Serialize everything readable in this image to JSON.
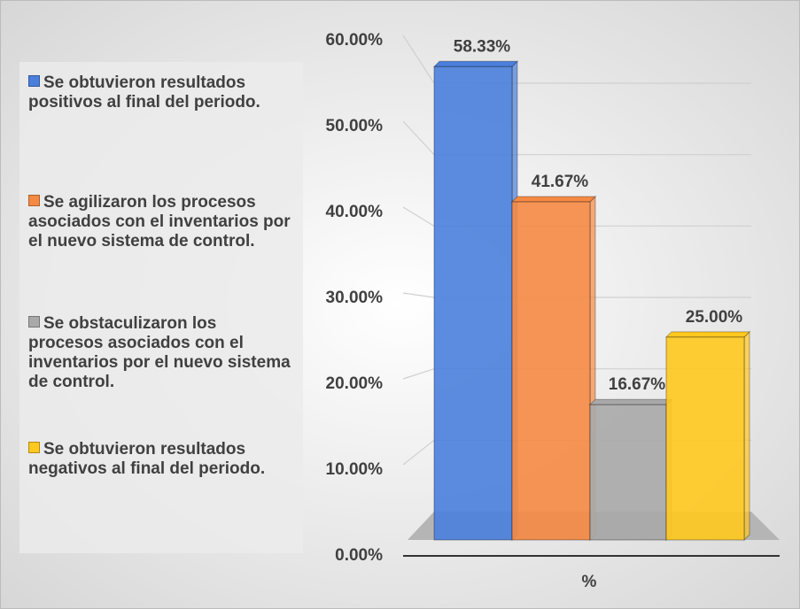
{
  "chart_data": {
    "type": "bar3d",
    "categories": [
      "%"
    ],
    "series": [
      {
        "name": "Se obtuvieron resultados positivos al final del periodo.",
        "color": "#4a7fdc",
        "values": [
          58.33
        ],
        "value_labels": [
          "58.33%"
        ]
      },
      {
        "name": "Se agilizaron los procesos asociados con el inventarios por el nuevo sistema de control.",
        "color": "#f58a44",
        "values": [
          41.67
        ],
        "value_labels": [
          "41.67%"
        ]
      },
      {
        "name": "Se obstaculizaron los procesos asociados con el inventarios por el nuevo sistema de control.",
        "color": "#a9a9a9",
        "values": [
          16.67
        ],
        "value_labels": [
          "16.67%"
        ]
      },
      {
        "name": "Se obtuvieron resultados negativos al final del periodo.",
        "color": "#ffc81e",
        "values": [
          25.0
        ],
        "value_labels": [
          "25.00%"
        ]
      }
    ],
    "ylim": [
      0,
      60
    ],
    "yticks": [
      {
        "value": 0,
        "label": "0.00%"
      },
      {
        "value": 10,
        "label": "10.00%"
      },
      {
        "value": 20,
        "label": "20.00%"
      },
      {
        "value": 30,
        "label": "30.00%"
      },
      {
        "value": 40,
        "label": "40.00%"
      },
      {
        "value": 50,
        "label": "50.00%"
      },
      {
        "value": 60,
        "label": "60.00%"
      }
    ],
    "grid": true,
    "legend": "left"
  }
}
